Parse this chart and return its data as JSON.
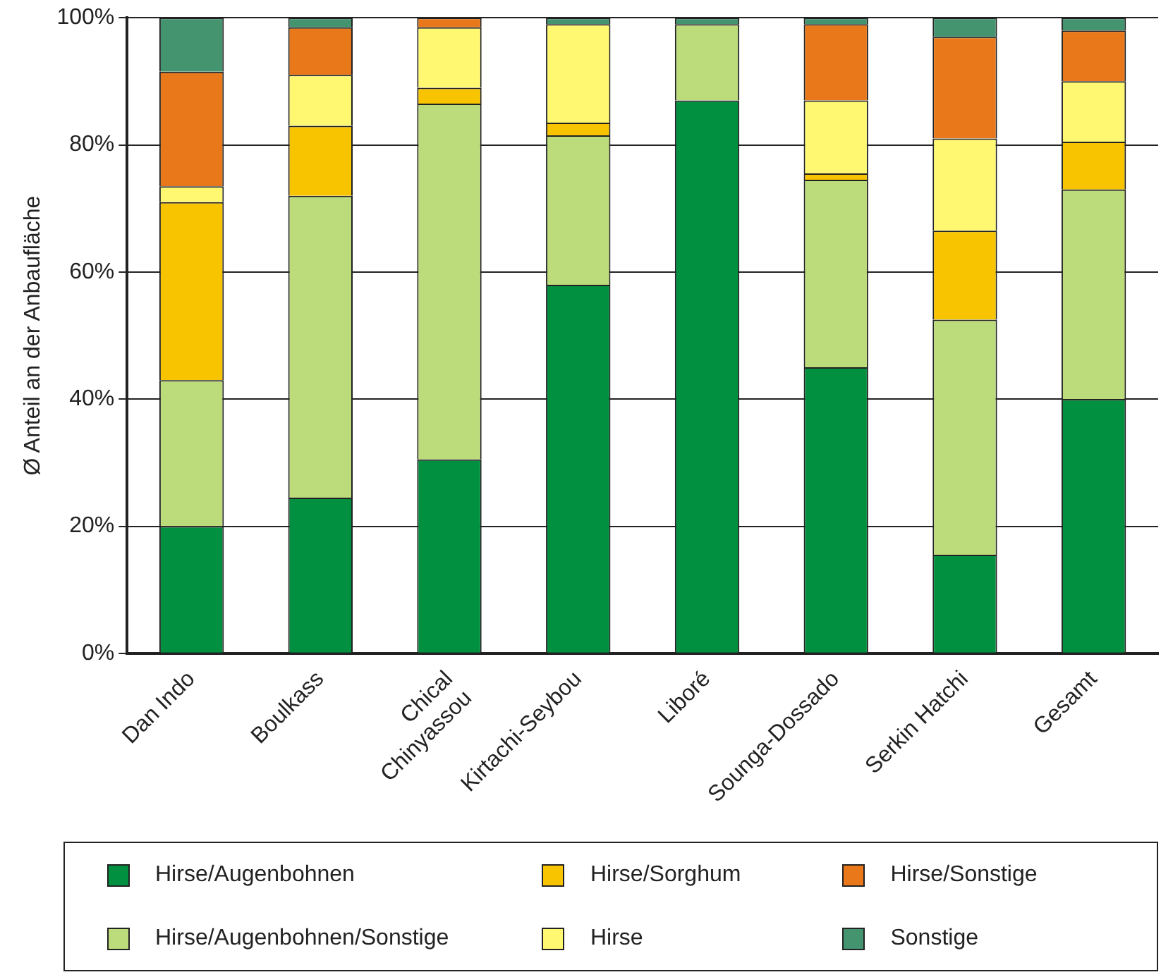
{
  "chart_data": {
    "type": "bar",
    "stacked": true,
    "ylabel": "Ø Anteil an der Anbaufläche",
    "categories": [
      "Dan Indo",
      "Boulkass",
      "Chical\nChinyassou",
      "Kirtachi-Seybou",
      "Liboré",
      "Sounga-Dossado",
      "Serkin Hatchi",
      "Gesamt"
    ],
    "series": [
      {
        "name": "Hirse/Augenbohnen",
        "color": "#009040",
        "values": [
          20,
          24.5,
          30.5,
          58,
          87,
          45,
          15.5,
          40
        ]
      },
      {
        "name": "Hirse/Augenbohnen/Sonstige",
        "color": "#bcdc7c",
        "values": [
          23,
          47.5,
          56,
          23.5,
          12,
          29.5,
          37,
          33
        ]
      },
      {
        "name": "Hirse/Sorghum",
        "color": "#f8c400",
        "values": [
          28,
          11,
          2.5,
          2,
          0,
          1,
          14,
          7.5
        ]
      },
      {
        "name": "Hirse",
        "color": "#fff870",
        "values": [
          2.5,
          8,
          9.5,
          15.5,
          0,
          11.5,
          14.5,
          9.5
        ]
      },
      {
        "name": "Hirse/Sonstige",
        "color": "#e8781a",
        "values": [
          18,
          7.5,
          1.5,
          0,
          0,
          12,
          16,
          8
        ]
      },
      {
        "name": "Sonstige",
        "color": "#449470",
        "values": [
          8.5,
          1.5,
          0,
          1,
          1,
          1,
          3,
          2
        ]
      }
    ],
    "ylim": [
      0,
      100
    ],
    "yticks": [
      {
        "value": 0,
        "label": "0%"
      },
      {
        "value": 20,
        "label": "20%"
      },
      {
        "value": 40,
        "label": "40%"
      },
      {
        "value": 60,
        "label": "60%"
      },
      {
        "value": 80,
        "label": "80%"
      },
      {
        "value": 100,
        "label": "100%"
      }
    ],
    "grid": "y",
    "legend": "bottom"
  }
}
